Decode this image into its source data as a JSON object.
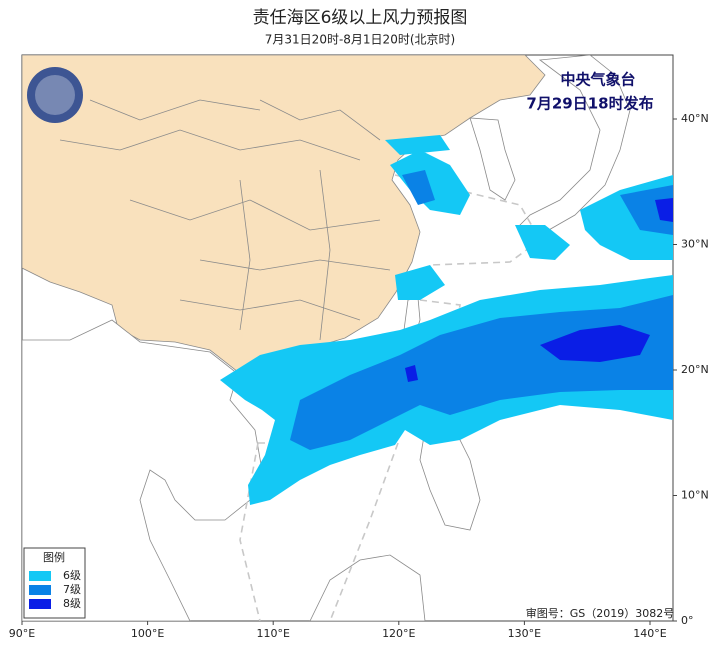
{
  "header": {
    "title": "责任海区6级以上风力预报图",
    "subtitle": "7月31日20时-8月1日20时(北京时)"
  },
  "issuer": {
    "name": "中央气象台",
    "time": "7月29日18时发布"
  },
  "legend": {
    "title": "图例",
    "items": [
      {
        "label": "6级",
        "color": "#14c8f5"
      },
      {
        "label": "7级",
        "color": "#0a82e6"
      },
      {
        "label": "8级",
        "color": "#0a1ee6"
      }
    ]
  },
  "axes": {
    "longitude": [
      "90°E",
      "100°E",
      "110°E",
      "120°E",
      "130°E",
      "140°E"
    ],
    "latitude": [
      "40°N",
      "30°N",
      "20°N",
      "10°N",
      "0°"
    ]
  },
  "footer": {
    "review_number": "审图号：GS（2019）3082号"
  }
}
